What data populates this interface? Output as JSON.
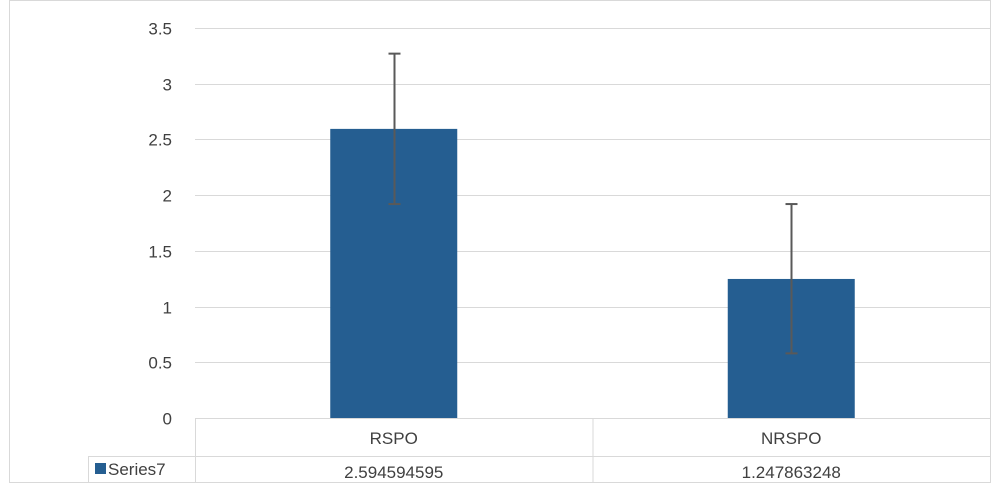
{
  "chart_data": {
    "type": "bar",
    "title": "",
    "xlabel": "",
    "ylabel": "",
    "categories": [
      "RSPO",
      "NRSPO"
    ],
    "series": [
      {
        "name": "Series7",
        "values": [
          2.594594595,
          1.247863248
        ],
        "error_upper": [
          3.27,
          1.92
        ],
        "error_lower": [
          1.92,
          0.58
        ]
      }
    ],
    "ylim": [
      0,
      3.5
    ],
    "yticks": [
      "0",
      "0.5",
      "1",
      "1.5",
      "2",
      "2.5",
      "3",
      "3.5"
    ],
    "grid": true,
    "legend": "data-table-bottom",
    "data_table": {
      "row_label": "Series7",
      "cells": [
        "2.594594595",
        "1.247863248"
      ]
    },
    "colors": {
      "bar": "#255E91",
      "error_bar": "#595959",
      "grid": "#D9D9D9",
      "axis_text": "#404040",
      "frame": "#D9D9D9"
    }
  }
}
